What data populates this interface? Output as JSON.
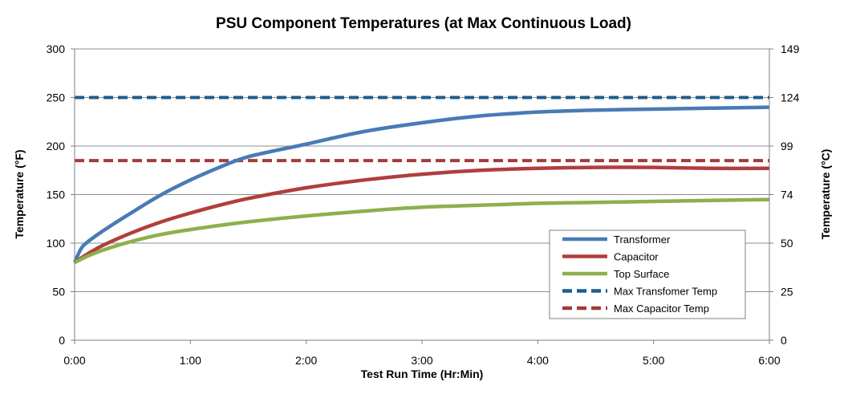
{
  "chart_data": {
    "type": "line",
    "title": "PSU Component Temperatures (at Max Continuous Load)",
    "xlabel": "Test Run Time (Hr:Min)",
    "ylabel": "Temperature (°F)",
    "y2label": "Temperature (°C)",
    "xlim": [
      0,
      6
    ],
    "ylim": [
      0,
      300
    ],
    "x_ticks": [
      0,
      1,
      2,
      3,
      4,
      5,
      6
    ],
    "x_tick_labels": [
      "0:00",
      "1:00",
      "2:00",
      "3:00",
      "4:00",
      "5:00",
      "6:00"
    ],
    "y_ticks": [
      0,
      50,
      100,
      150,
      200,
      250,
      300
    ],
    "y_tick_labels": [
      "0",
      "50",
      "100",
      "150",
      "200",
      "250",
      "300"
    ],
    "y2_tick_labels": [
      "0",
      "25",
      "50",
      "74",
      "99",
      "124",
      "149"
    ],
    "grid": "horizontal",
    "legend_position": "bottom-right",
    "series": [
      {
        "name": "Transformer",
        "color": "#4a7ab5",
        "style": "solid",
        "x": [
          0,
          0.05,
          0.1,
          0.25,
          0.5,
          0.75,
          1.0,
          1.25,
          1.5,
          2.0,
          2.5,
          3.0,
          3.5,
          4.0,
          4.5,
          5.0,
          5.5,
          6.0
        ],
        "y": [
          80,
          93,
          100,
          113,
          132,
          150,
          165,
          178,
          189,
          202,
          215,
          224,
          231,
          235,
          237,
          238,
          239,
          240
        ]
      },
      {
        "name": "Capacitor",
        "color": "#b03e3c",
        "style": "solid",
        "x": [
          0,
          0.1,
          0.25,
          0.5,
          0.75,
          1.0,
          1.25,
          1.5,
          2.0,
          2.5,
          3.0,
          3.5,
          4.0,
          4.5,
          5.0,
          5.5,
          6.0
        ],
        "y": [
          80,
          88,
          98,
          111,
          122,
          131,
          139,
          146,
          157,
          165,
          171,
          175,
          177,
          178,
          178,
          177,
          177
        ]
      },
      {
        "name": "Top Surface",
        "color": "#8db04b",
        "style": "solid",
        "x": [
          0,
          0.1,
          0.25,
          0.5,
          0.75,
          1.0,
          1.5,
          2.0,
          2.5,
          3.0,
          3.5,
          4.0,
          4.5,
          5.0,
          5.5,
          6.0
        ],
        "y": [
          80,
          86,
          93,
          102,
          109,
          114,
          122,
          128,
          133,
          137,
          139,
          141,
          142,
          143,
          144,
          145
        ]
      },
      {
        "name": "Max Transfomer Temp",
        "color": "#1f5c8c",
        "style": "dashed",
        "x": [
          0,
          6
        ],
        "y": [
          250,
          250
        ]
      },
      {
        "name": "Max Capacitor Temp",
        "color": "#a33b38",
        "style": "dashed",
        "x": [
          0,
          6
        ],
        "y": [
          185,
          185
        ]
      }
    ]
  }
}
